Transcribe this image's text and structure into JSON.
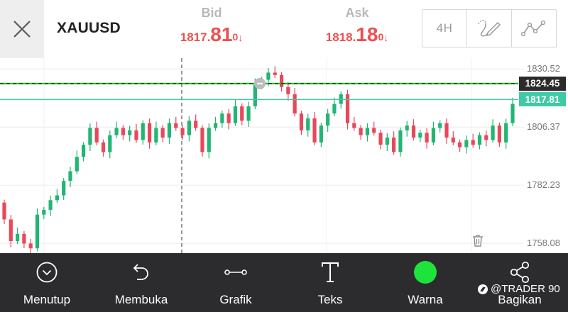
{
  "header": {
    "symbol": "XAUUSD",
    "bid": {
      "label": "Bid",
      "price_small": "1817.",
      "price_big": "81",
      "price_sup": "0",
      "direction": "↓"
    },
    "ask": {
      "label": "Ask",
      "price_small": "1818.",
      "price_big": "18",
      "price_sup": "0",
      "direction": "↓"
    },
    "timeframe": "4H",
    "icons": [
      "close-icon",
      "draw-curve-icon",
      "line-chart-icon"
    ]
  },
  "chart": {
    "y_axis": {
      "labels": [
        "1830.52",
        "1806.37",
        "1782.23",
        "1758.08"
      ],
      "min": 1754,
      "max": 1835
    },
    "horizontal_line": {
      "price": 1824.45,
      "label": "1824.45",
      "color": "#22b822"
    },
    "current_price": {
      "price": 1817.81,
      "label": "1817.81",
      "color": "#3fc9a4"
    },
    "colors": {
      "up": "#22b573",
      "down": "#e8485a"
    }
  },
  "chart_data": {
    "type": "candlestick",
    "symbol": "XAUUSD",
    "timeframe": "4H",
    "ylim": [
      1754,
      1835
    ],
    "closes": [
      1768,
      1759,
      1762,
      1758,
      1756,
      1770,
      1772,
      1776,
      1778,
      1784,
      1788,
      1794,
      1799,
      1806,
      1800,
      1796,
      1803,
      1806,
      1803,
      1805,
      1801,
      1808,
      1800,
      1806,
      1802,
      1808,
      1806,
      1803,
      1809,
      1806,
      1796,
      1806,
      1808,
      1812,
      1808,
      1815,
      1809,
      1815,
      1824,
      1826,
      1829,
      1828,
      1823,
      1820,
      1812,
      1805,
      1810,
      1800,
      1807,
      1812,
      1816,
      1820,
      1808,
      1806,
      1803,
      1806,
      1804,
      1799,
      1802,
      1796,
      1805,
      1807,
      1802,
      1804,
      1800,
      1806,
      1808,
      1802,
      1800,
      1798,
      1801,
      1799,
      1803,
      1801,
      1807,
      1800,
      1808,
      1816
    ]
  },
  "toolbar": {
    "items": [
      {
        "label": "Menutup",
        "icon": "chevron-circle-icon"
      },
      {
        "label": "Membuka",
        "icon": "undo-icon"
      },
      {
        "label": "Grafik",
        "icon": "line-segment-icon"
      },
      {
        "label": "Teks",
        "icon": "text-icon"
      },
      {
        "label": "Warna",
        "icon": "color-dot-icon",
        "color": "#1ee33c"
      },
      {
        "label": "Bagikan",
        "icon": "share-icon"
      }
    ]
  },
  "watermark": {
    "text": "@TRADER 90"
  }
}
